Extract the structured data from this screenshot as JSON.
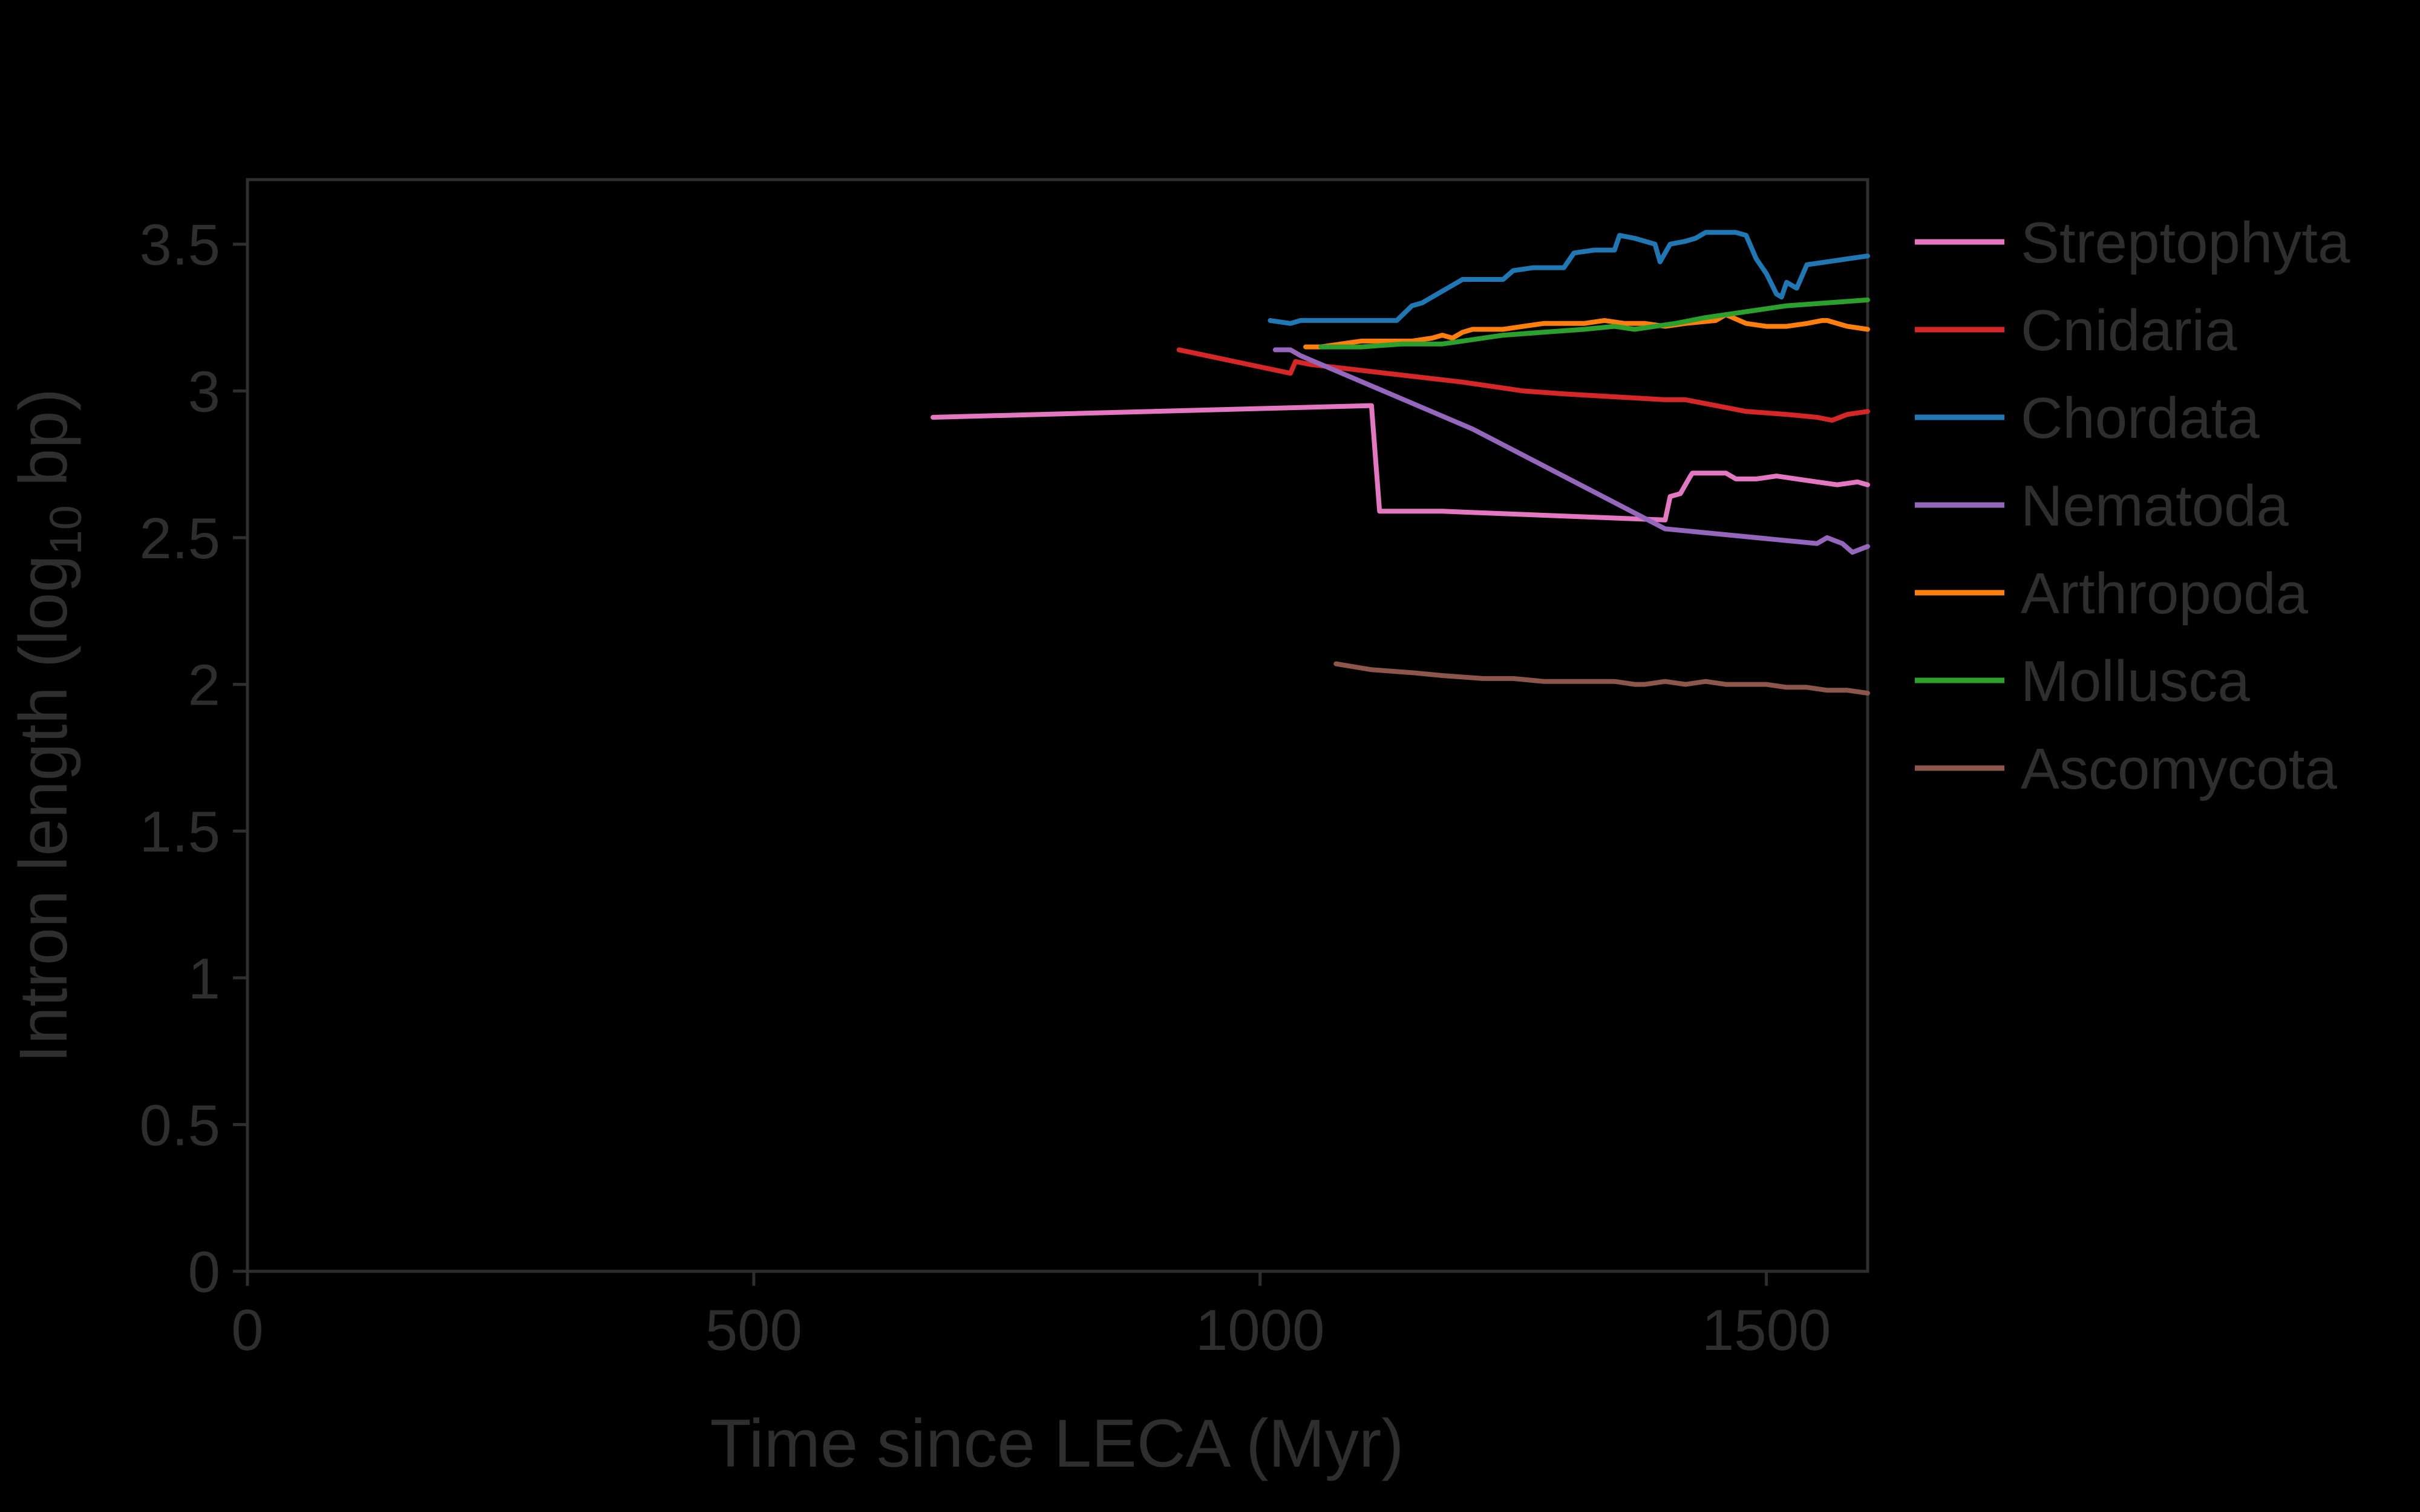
{
  "chart_data": {
    "type": "line",
    "title": "",
    "xlabel": "Time since LECA (Myr)",
    "ylabel": "Intron length (log",
    "ylabel_sub": "10",
    "ylabel_tail": " bp)",
    "xlim": [
      0,
      1600
    ],
    "ylim": [
      0,
      3.72
    ],
    "xticks": [
      0,
      500,
      1000,
      1500
    ],
    "xtick_labels": [
      "0",
      "500",
      "1000",
      "1500"
    ],
    "yticks": [
      0,
      0.5,
      1,
      1.5,
      2,
      2.5,
      3,
      3.5
    ],
    "ytick_labels": [
      "0",
      "0.5",
      "1",
      "1.5",
      "2",
      "2.5",
      "3",
      "3.5"
    ],
    "grid": false,
    "legend_position": "right",
    "background": "#000000",
    "axis_color": "#2e2e2e",
    "series": [
      {
        "name": "Streptophyta",
        "color": "#e377c2",
        "x": [
          677,
          1110,
          1118,
          1180,
          1400,
          1405,
          1415,
          1425,
          1427,
          1440,
          1460,
          1470,
          1490,
          1510,
          1530,
          1550,
          1570,
          1590,
          1600
        ],
        "y": [
          2.91,
          2.95,
          2.59,
          2.59,
          2.56,
          2.64,
          2.65,
          2.71,
          2.72,
          2.72,
          2.72,
          2.7,
          2.7,
          2.71,
          2.7,
          2.69,
          2.68,
          2.69,
          2.68
        ]
      },
      {
        "name": "Cnidaria",
        "color": "#d62728",
        "x": [
          920,
          1030,
          1035,
          1050,
          1100,
          1150,
          1200,
          1260,
          1300,
          1350,
          1400,
          1420,
          1450,
          1480,
          1520,
          1550,
          1565,
          1580,
          1600
        ],
        "y": [
          3.14,
          3.06,
          3.1,
          3.09,
          3.07,
          3.05,
          3.03,
          3.0,
          2.99,
          2.98,
          2.97,
          2.97,
          2.95,
          2.93,
          2.92,
          2.91,
          2.9,
          2.92,
          2.93
        ]
      },
      {
        "name": "Chordata",
        "color": "#1f77b4",
        "x": [
          1010,
          1030,
          1040,
          1050,
          1090,
          1135,
          1150,
          1160,
          1175,
          1190,
          1200,
          1220,
          1240,
          1250,
          1270,
          1300,
          1310,
          1330,
          1350,
          1355,
          1370,
          1390,
          1395,
          1405,
          1420,
          1430,
          1440,
          1450,
          1470,
          1480,
          1490,
          1500,
          1510,
          1515,
          1520,
          1530,
          1540,
          1560,
          1580,
          1600
        ],
        "y": [
          3.24,
          3.23,
          3.24,
          3.24,
          3.24,
          3.24,
          3.29,
          3.3,
          3.33,
          3.36,
          3.38,
          3.38,
          3.38,
          3.41,
          3.42,
          3.42,
          3.47,
          3.48,
          3.48,
          3.53,
          3.52,
          3.5,
          3.44,
          3.5,
          3.51,
          3.52,
          3.54,
          3.54,
          3.54,
          3.53,
          3.45,
          3.4,
          3.33,
          3.32,
          3.37,
          3.35,
          3.43,
          3.44,
          3.45,
          3.46
        ]
      },
      {
        "name": "Nematoda",
        "color": "#9467bd",
        "x": [
          1015,
          1030,
          1040,
          1210,
          1400,
          1550,
          1560,
          1575,
          1585,
          1600
        ],
        "y": [
          3.14,
          3.14,
          3.12,
          2.87,
          2.53,
          2.48,
          2.5,
          2.48,
          2.45,
          2.47
        ]
      },
      {
        "name": "Arthropoda",
        "color": "#ff7f0e",
        "x": [
          1045,
          1060,
          1080,
          1100,
          1150,
          1170,
          1180,
          1190,
          1200,
          1210,
          1240,
          1260,
          1280,
          1300,
          1320,
          1340,
          1360,
          1380,
          1400,
          1420,
          1450,
          1460,
          1480,
          1500,
          1520,
          1540,
          1555,
          1560,
          1580,
          1600
        ],
        "y": [
          3.15,
          3.15,
          3.16,
          3.17,
          3.17,
          3.18,
          3.19,
          3.18,
          3.2,
          3.21,
          3.21,
          3.22,
          3.23,
          3.23,
          3.23,
          3.24,
          3.23,
          3.23,
          3.22,
          3.23,
          3.24,
          3.26,
          3.23,
          3.22,
          3.22,
          3.23,
          3.24,
          3.24,
          3.22,
          3.21
        ]
      },
      {
        "name": "Mollusca",
        "color": "#2ca02c",
        "x": [
          1060,
          1100,
          1140,
          1180,
          1200,
          1240,
          1280,
          1320,
          1350,
          1370,
          1390,
          1410,
          1440,
          1480,
          1520,
          1560,
          1600
        ],
        "y": [
          3.15,
          3.15,
          3.16,
          3.16,
          3.17,
          3.19,
          3.2,
          3.21,
          3.22,
          3.21,
          3.22,
          3.23,
          3.25,
          3.27,
          3.29,
          3.3,
          3.31
        ]
      },
      {
        "name": "Ascomycota",
        "color": "#8c564b",
        "x": [
          1075,
          1110,
          1150,
          1180,
          1220,
          1250,
          1280,
          1320,
          1350,
          1370,
          1380,
          1400,
          1420,
          1440,
          1460,
          1480,
          1500,
          1520,
          1540,
          1560,
          1580,
          1600
        ],
        "y": [
          2.07,
          2.05,
          2.04,
          2.03,
          2.02,
          2.02,
          2.01,
          2.01,
          2.01,
          2.0,
          2.0,
          2.01,
          2.0,
          2.01,
          2.0,
          2.0,
          2.0,
          1.99,
          1.99,
          1.98,
          1.98,
          1.97
        ]
      }
    ]
  }
}
